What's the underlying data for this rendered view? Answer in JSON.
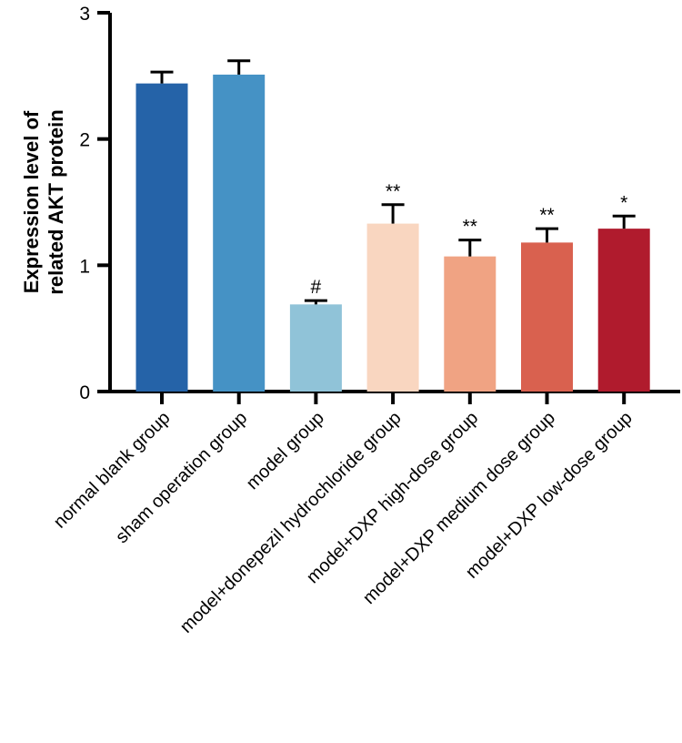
{
  "chart_data": {
    "type": "bar",
    "title": "",
    "xlabel": "",
    "ylabel_lines": [
      "Expression level of",
      "related AKT protein"
    ],
    "ylim": [
      0,
      3
    ],
    "yticks": [
      0,
      1,
      2,
      3
    ],
    "ytick_labels": [
      "0",
      "1",
      "2",
      "3"
    ],
    "categories": [
      "normal blank group",
      "sham operation group",
      "model group",
      "model+donepezil hydrochloride group",
      "model+DXP high-dose group",
      "model+DXP medium dose group",
      "model+DXP low-dose group"
    ],
    "values": [
      2.44,
      2.51,
      0.69,
      1.33,
      1.07,
      1.18,
      1.29
    ],
    "errors": [
      0.09,
      0.11,
      0.03,
      0.15,
      0.13,
      0.11,
      0.1
    ],
    "significance": [
      "",
      "",
      "#",
      "**",
      "**",
      "**",
      "*"
    ],
    "colors": [
      "#2563a8",
      "#4592c5",
      "#90c3d8",
      "#f9d6c0",
      "#f0a383",
      "#d9614f",
      "#b01b2d"
    ],
    "grid": false,
    "legend": "none"
  }
}
